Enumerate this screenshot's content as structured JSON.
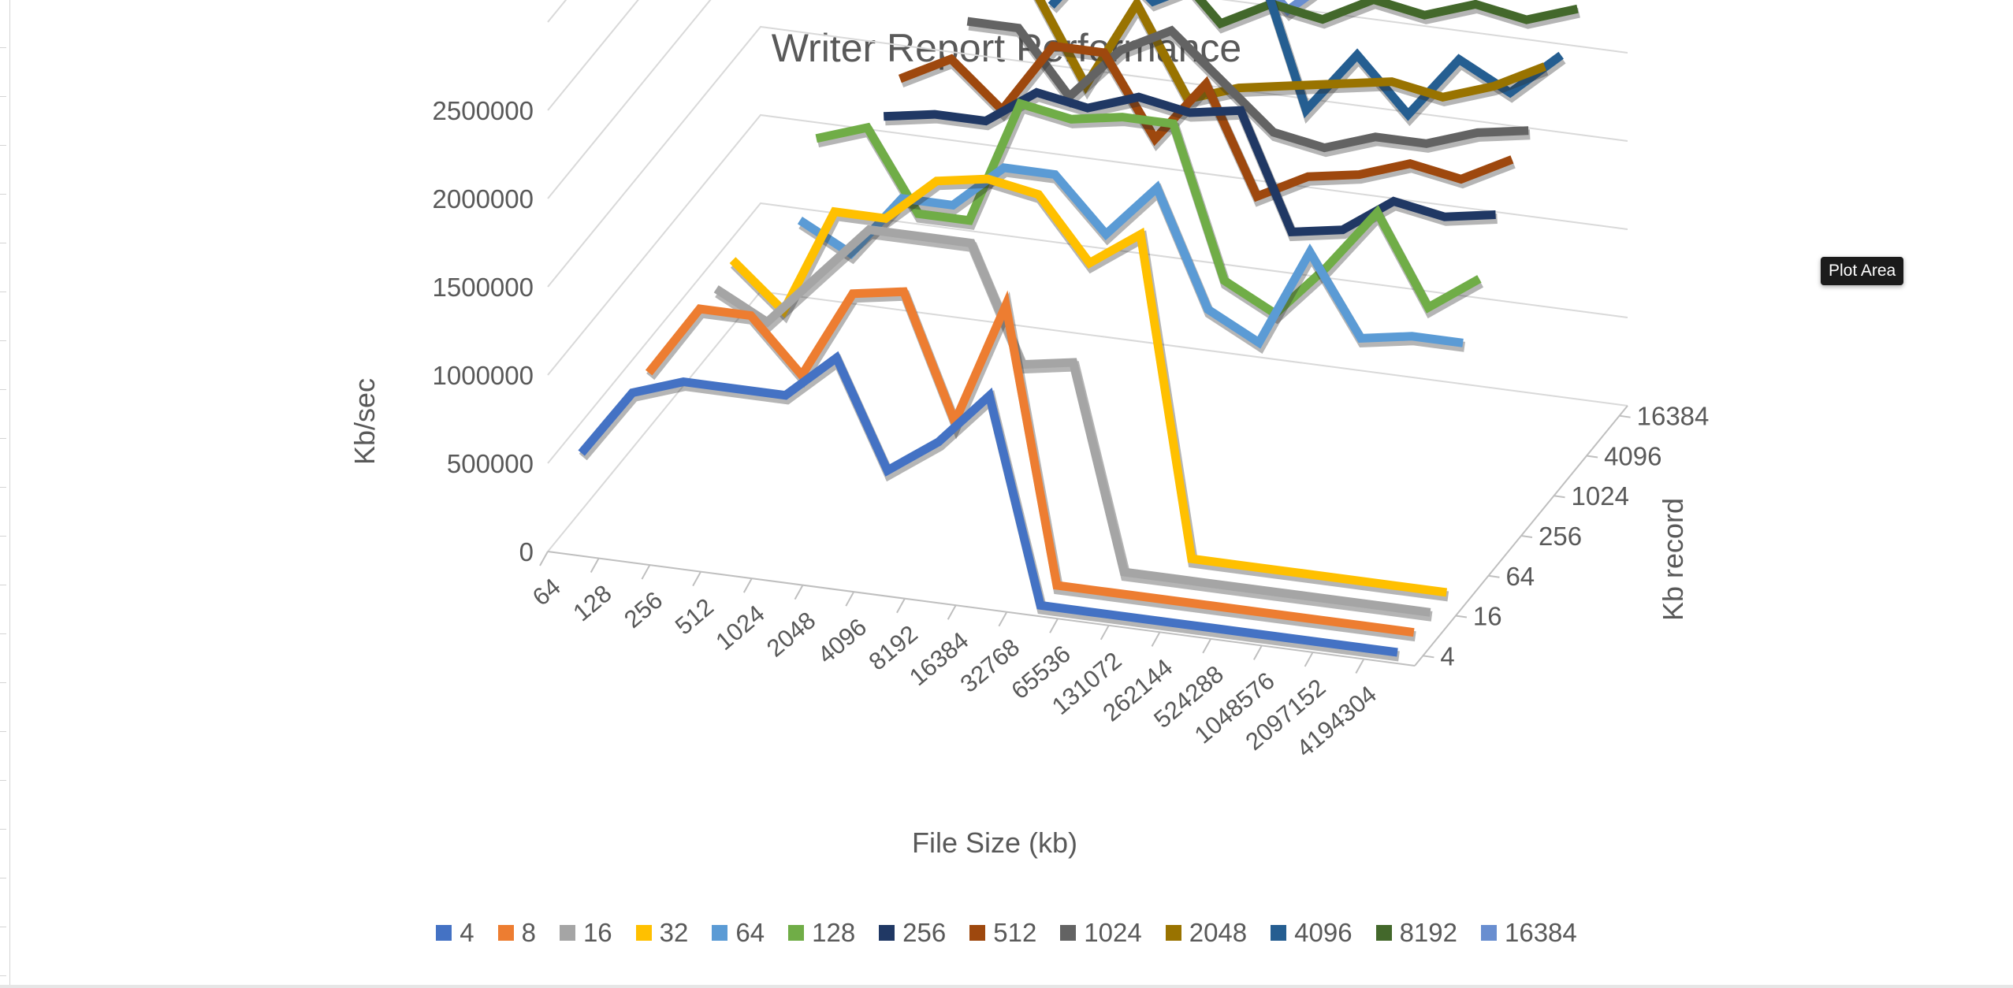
{
  "tooltip": "Plot Area",
  "chart_data": {
    "type": "line",
    "title": "Writer Report Performance",
    "xlabel": "File Size (kb)",
    "ylabel": "Kb/sec",
    "zlabel": "Kb record",
    "y_ticks": [
      "0",
      "500000",
      "1000000",
      "1500000",
      "2000000",
      "2500000"
    ],
    "ylim": [
      0,
      2500000
    ],
    "x": [
      "64",
      "128",
      "256",
      "512",
      "1024",
      "2048",
      "4096",
      "8192",
      "16384",
      "32768",
      "65536",
      "131072",
      "262144",
      "524288",
      "1048576",
      "2097152",
      "4194304"
    ],
    "z_ticks": [
      "4",
      "16",
      "64",
      "256",
      "1024",
      "4096",
      "16384"
    ],
    "grid": true,
    "legend_position": "bottom",
    "series": [
      {
        "name": "4",
        "color": "#4472C4",
        "values": [
          520000,
          900000,
          1000000,
          1000000,
          1000000,
          1250000,
          650000,
          850000,
          1150000,
          0,
          0,
          0,
          0,
          0,
          0,
          0,
          0
        ]
      },
      {
        "name": "8",
        "color": "#ED7D31",
        "values": [
          null,
          900000,
          1300000,
          1300000,
          1000000,
          1500000,
          1550000,
          850000,
          1550000,
          0,
          0,
          0,
          0,
          0,
          0,
          0,
          0
        ]
      },
      {
        "name": "16",
        "color": "#A5A5A5",
        "values": [
          null,
          null,
          1300000,
          1150000,
          1450000,
          1750000,
          1750000,
          1750000,
          1100000,
          1150000,
          0,
          0,
          0,
          0,
          0,
          0,
          0
        ]
      },
      {
        "name": "32",
        "color": "#FFC000",
        "values": [
          null,
          null,
          1350000,
          1100000,
          1700000,
          1700000,
          1950000,
          2000000,
          1950000,
          1600000,
          1800000,
          0,
          0,
          0,
          0,
          0,
          0
        ]
      },
      {
        "name": "64",
        "color": "#5B9BD5",
        "values": [
          null,
          null,
          null,
          1500000,
          1350000,
          1700000,
          1700000,
          1950000,
          1950000,
          1650000,
          1950000,
          1300000,
          1150000,
          1700000,
          1250000,
          1300000,
          1300000
        ]
      },
      {
        "name": "128",
        "color": "#70AD47",
        "values": [
          null,
          null,
          null,
          1850000,
          1950000,
          1500000,
          1500000,
          2200000,
          2150000,
          2200000,
          2200000,
          1350000,
          1200000,
          1500000,
          1850000,
          1350000,
          1550000
        ]
      },
      {
        "name": "256",
        "color": "#203864",
        "values": [
          null,
          null,
          null,
          null,
          1900000,
          1950000,
          1950000,
          2150000,
          2100000,
          2200000,
          2150000,
          2200000,
          1550000,
          1600000,
          1800000,
          1750000,
          1800000
        ]
      },
      {
        "name": "512",
        "color": "#9E480E",
        "values": [
          null,
          null,
          null,
          null,
          2000000,
          2150000,
          1900000,
          2300000,
          2300000,
          1850000,
          2200000,
          1600000,
          1750000,
          1800000,
          1900000,
          1850000,
          2000000
        ]
      },
      {
        "name": "1024",
        "color": "#636363",
        "values": [
          null,
          null,
          null,
          null,
          null,
          2250000,
          2250000,
          1900000,
          2200000,
          2350000,
          2100000,
          1850000,
          1800000,
          1900000,
          1900000,
          2000000,
          2050000
        ]
      },
      {
        "name": "2048",
        "color": "#997300",
        "values": [
          null,
          null,
          null,
          null,
          null,
          null,
          2350000,
          1850000,
          2350000,
          1850000,
          1950000,
          2000000,
          2050000,
          2100000,
          2050000,
          2150000,
          2300000
        ]
      },
      {
        "name": "4096",
        "color": "#255E91",
        "values": [
          null,
          null,
          null,
          null,
          null,
          null,
          2150000,
          2500000,
          2250000,
          2400000,
          2600000,
          1750000,
          2100000,
          1800000,
          2150000,
          2000000,
          2250000
        ]
      },
      {
        "name": "8192",
        "color": "#43682B",
        "values": [
          null,
          null,
          null,
          null,
          null,
          null,
          2300000,
          2600000,
          2350000,
          2050000,
          2200000,
          2150000,
          2300000,
          2250000,
          2350000,
          2300000,
          2400000
        ]
      },
      {
        "name": "16384",
        "color": "#698ED0",
        "values": [
          null,
          null,
          null,
          null,
          null,
          null,
          null,
          2200000,
          2200000,
          2350000,
          2050000,
          2300000,
          2250000,
          2300000,
          2350000,
          2400000,
          2400000
        ]
      }
    ]
  }
}
